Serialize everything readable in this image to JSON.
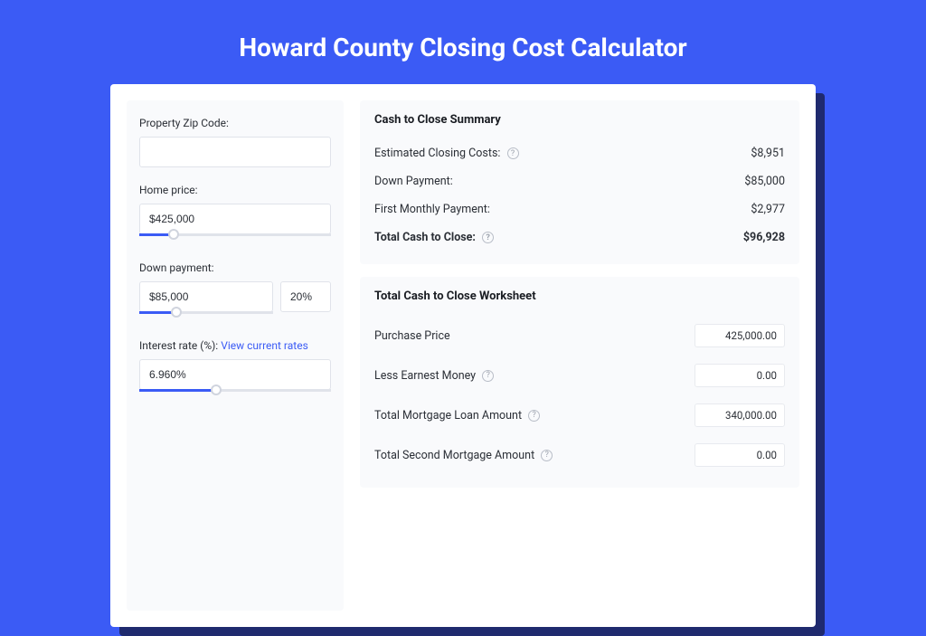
{
  "colors": {
    "page_bg": "#3b5bf5",
    "shadow": "#1f2a6e",
    "card_bg": "#ffffff",
    "panel_bg": "#f9fafc",
    "border": "#e0e3ea",
    "text": "#2b2f36",
    "link": "#3b5bf5"
  },
  "title": "Howard County Closing Cost Calculator",
  "form": {
    "zip": {
      "label": "Property Zip Code:",
      "value": ""
    },
    "home_price": {
      "label": "Home price:",
      "value": "$425,000",
      "slider_fill_pct": 18
    },
    "down_payment": {
      "label": "Down payment:",
      "value": "$85,000",
      "pct": "20%",
      "slider_fill_pct": 28
    },
    "interest": {
      "label_prefix": "Interest rate (%): ",
      "link_text": "View current rates",
      "value": "6.960%",
      "slider_fill_pct": 40
    }
  },
  "summary": {
    "heading": "Cash to Close Summary",
    "rows": [
      {
        "label": "Estimated Closing Costs:",
        "help": true,
        "value": "$8,951"
      },
      {
        "label": "Down Payment:",
        "help": false,
        "value": "$85,000"
      },
      {
        "label": "First Monthly Payment:",
        "help": false,
        "value": "$2,977"
      }
    ],
    "total": {
      "label": "Total Cash to Close:",
      "help": true,
      "value": "$96,928"
    }
  },
  "worksheet": {
    "heading": "Total Cash to Close Worksheet",
    "rows": [
      {
        "label": "Purchase Price",
        "help": false,
        "value": "425,000.00"
      },
      {
        "label": "Less Earnest Money",
        "help": true,
        "value": "0.00"
      },
      {
        "label": "Total Mortgage Loan Amount",
        "help": true,
        "value": "340,000.00"
      },
      {
        "label": "Total Second Mortgage Amount",
        "help": true,
        "value": "0.00"
      }
    ]
  }
}
